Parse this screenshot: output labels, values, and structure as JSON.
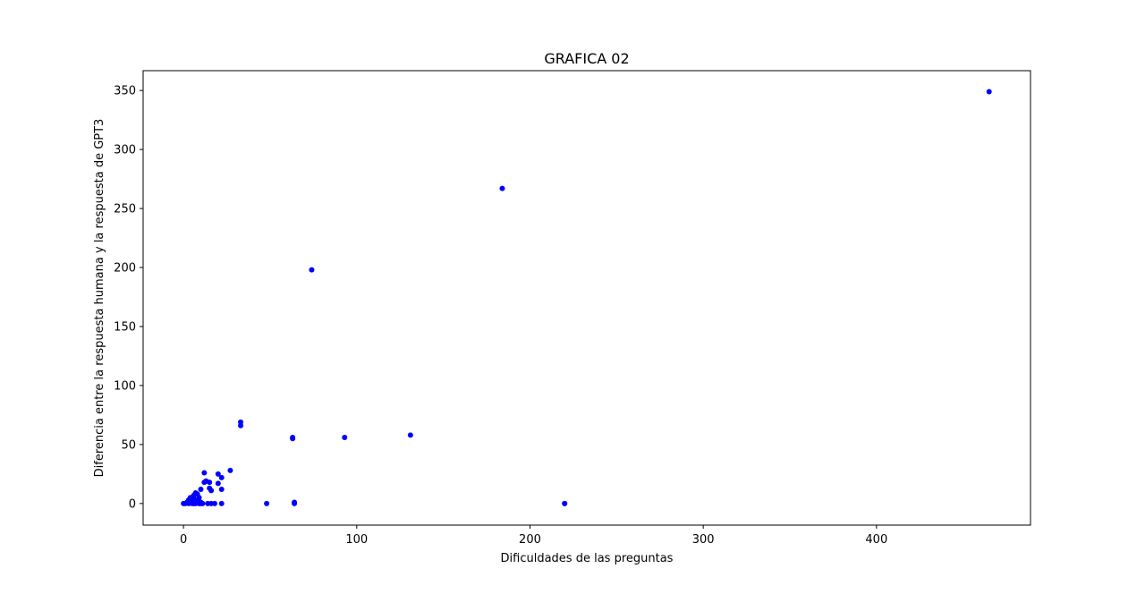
{
  "chart_data": {
    "type": "scatter",
    "title": "GRAFICA 02",
    "xlabel": "Dificuldades de las preguntas",
    "ylabel": "Diferencia entre la respuesta humana y la respuesta de GPT3",
    "xlim": [
      -23.3,
      488.9
    ],
    "ylim": [
      -18.3,
      366.8
    ],
    "xticks": [
      0,
      100,
      200,
      300,
      400
    ],
    "yticks": [
      0,
      50,
      100,
      150,
      200,
      250,
      300,
      350
    ],
    "grid": false,
    "marker_color": "#0000ff",
    "series": [
      {
        "points": [
          [
            0,
            0
          ],
          [
            1,
            0
          ],
          [
            2,
            1
          ],
          [
            3,
            3
          ],
          [
            3,
            0
          ],
          [
            4,
            2
          ],
          [
            4,
            5
          ],
          [
            5,
            0
          ],
          [
            5,
            4
          ],
          [
            6,
            1
          ],
          [
            6,
            7
          ],
          [
            6,
            0
          ],
          [
            7,
            9
          ],
          [
            7,
            3
          ],
          [
            7,
            0
          ],
          [
            8,
            8
          ],
          [
            8,
            2
          ],
          [
            9,
            0
          ],
          [
            9,
            5
          ],
          [
            10,
            1
          ],
          [
            10,
            0
          ],
          [
            10,
            12
          ],
          [
            11,
            0
          ],
          [
            12,
            26
          ],
          [
            12,
            18
          ],
          [
            13,
            19
          ],
          [
            14,
            0
          ],
          [
            15,
            13
          ],
          [
            15,
            18
          ],
          [
            16,
            11
          ],
          [
            16,
            0
          ],
          [
            18,
            0
          ],
          [
            20,
            17
          ],
          [
            20,
            25
          ],
          [
            22,
            22
          ],
          [
            22,
            0
          ],
          [
            22,
            12
          ],
          [
            27,
            28
          ],
          [
            33,
            69
          ],
          [
            33,
            66
          ],
          [
            48,
            0
          ],
          [
            63,
            56
          ],
          [
            63,
            55
          ],
          [
            64,
            1
          ],
          [
            64,
            0
          ],
          [
            74,
            198
          ],
          [
            93,
            56
          ],
          [
            131,
            58
          ],
          [
            184,
            267
          ],
          [
            220,
            0
          ],
          [
            220,
            0
          ],
          [
            465,
            349
          ]
        ]
      }
    ]
  }
}
